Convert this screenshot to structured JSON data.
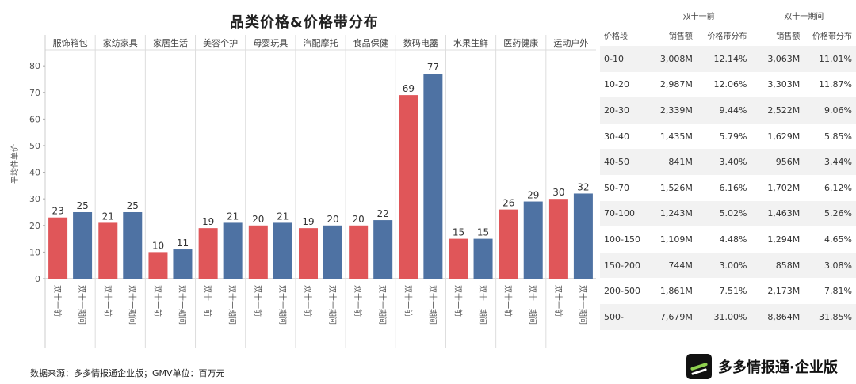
{
  "title": "品类价格&价格带分布",
  "chart_data": {
    "type": "bar",
    "categories": [
      "服饰箱包",
      "家纺家具",
      "家居生活",
      "美容个护",
      "母婴玩具",
      "汽配摩托",
      "食品保健",
      "数码电器",
      "水果生鲜",
      "医药健康",
      "运动户外"
    ],
    "series": [
      {
        "name": "双十一前",
        "values": [
          23,
          21,
          10,
          19,
          20,
          19,
          20,
          69,
          15,
          26,
          30
        ]
      },
      {
        "name": "双十一期间",
        "values": [
          25,
          25,
          11,
          21,
          21,
          20,
          22,
          77,
          15,
          29,
          32
        ]
      }
    ],
    "ylabel": "平均件单价",
    "ylim": [
      0,
      80
    ],
    "yticks": [
      0,
      10,
      20,
      30,
      40,
      50,
      60,
      70,
      80
    ],
    "colors": {
      "双十一前": "#e05659",
      "双十一期间": "#4e72a3"
    }
  },
  "table": {
    "group_headers": [
      "双十一前",
      "双十一期间"
    ],
    "columns": [
      "价格段",
      "销售额",
      "价格带分布",
      "销售额",
      "价格带分布"
    ],
    "rows": [
      [
        "0-10",
        "3,008M",
        "12.14%",
        "3,063M",
        "11.01%"
      ],
      [
        "10-20",
        "2,987M",
        "12.06%",
        "3,303M",
        "11.87%"
      ],
      [
        "20-30",
        "2,339M",
        "9.44%",
        "2,522M",
        "9.06%"
      ],
      [
        "30-40",
        "1,435M",
        "5.79%",
        "1,629M",
        "5.85%"
      ],
      [
        "40-50",
        "841M",
        "3.40%",
        "956M",
        "3.44%"
      ],
      [
        "50-70",
        "1,526M",
        "6.16%",
        "1,702M",
        "6.12%"
      ],
      [
        "70-100",
        "1,243M",
        "5.02%",
        "1,463M",
        "5.26%"
      ],
      [
        "100-150",
        "1,109M",
        "4.48%",
        "1,294M",
        "4.65%"
      ],
      [
        "150-200",
        "744M",
        "3.00%",
        "858M",
        "3.08%"
      ],
      [
        "200-500",
        "1,861M",
        "7.51%",
        "2,173M",
        "7.81%"
      ],
      [
        "500-",
        "7,679M",
        "31.00%",
        "8,864M",
        "31.85%"
      ]
    ]
  },
  "source_note": "数据来源：多多情报通企业版；GMV单位：百万元",
  "brand": "多多情报通·企业版"
}
